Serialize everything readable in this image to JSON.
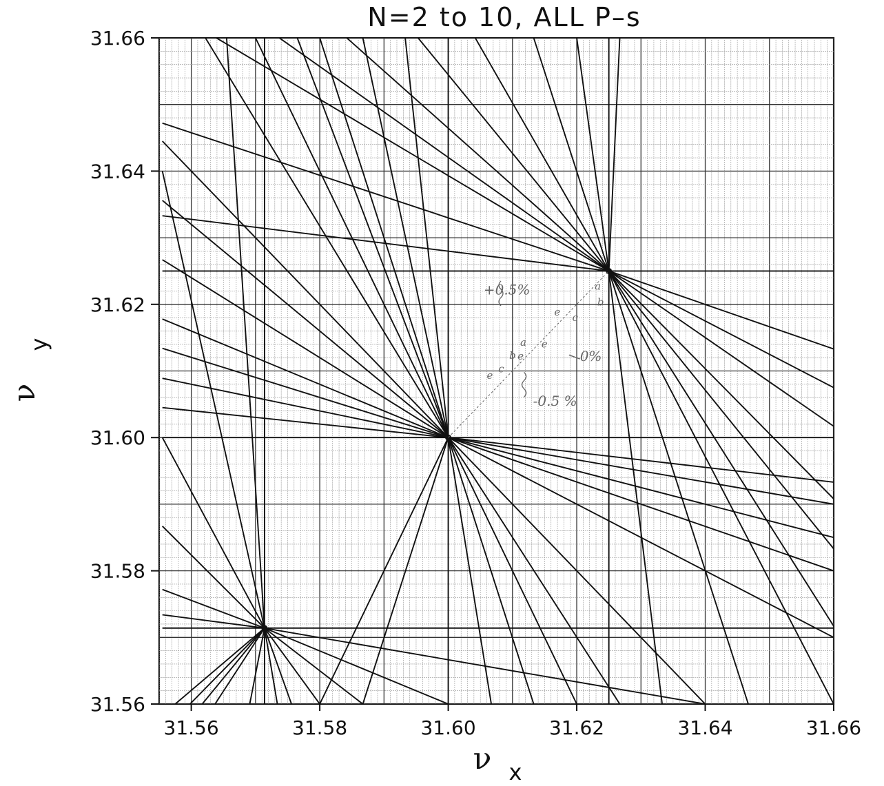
{
  "chart_data": {
    "type": "line",
    "title": "N=2  to  10,  ALL  P–s",
    "xlabel": "ν",
    "xlabel_sub": "x",
    "ylabel": "ν",
    "ylabel_sub": "y",
    "xlim": [
      31.555,
      31.66
    ],
    "ylim": [
      31.56,
      31.66
    ],
    "x_ticks": [
      {
        "value": 31.56,
        "label": "31.56"
      },
      {
        "value": 31.58,
        "label": "31.58"
      },
      {
        "value": 31.6,
        "label": "31.60"
      },
      {
        "value": 31.62,
        "label": "31.62"
      },
      {
        "value": 31.64,
        "label": "31.64"
      },
      {
        "value": 31.66,
        "label": "31.66"
      }
    ],
    "y_ticks": [
      {
        "value": 31.56,
        "label": "31.56"
      },
      {
        "value": 31.58,
        "label": "31.58"
      },
      {
        "value": 31.6,
        "label": "31.60"
      },
      {
        "value": 31.62,
        "label": "31.62"
      },
      {
        "value": 31.64,
        "label": "31.64"
      },
      {
        "value": 31.66,
        "label": "31.66"
      }
    ],
    "grid": true,
    "resonance_nodes": [
      {
        "x": 31.5714,
        "y": 31.5714
      },
      {
        "x": 31.6,
        "y": 31.6
      },
      {
        "x": 31.625,
        "y": 31.625
      }
    ],
    "resonance_lines": [
      [
        31.5714,
        31.5714,
        31.5555,
        31.64
      ],
      [
        31.5714,
        31.5714,
        31.5555,
        31.6
      ],
      [
        31.5714,
        31.5714,
        31.5555,
        31.5867
      ],
      [
        31.5714,
        31.5714,
        31.5555,
        31.5772
      ],
      [
        31.5714,
        31.5714,
        31.5555,
        31.5734
      ],
      [
        31.5714,
        31.5714,
        31.5555,
        31.5714
      ],
      [
        31.5714,
        31.5714,
        31.5575,
        31.56
      ],
      [
        31.5714,
        31.5714,
        31.5598,
        31.56
      ],
      [
        31.5714,
        31.5714,
        31.5617,
        31.56
      ],
      [
        31.5714,
        31.5714,
        31.5637,
        31.56
      ],
      [
        31.5714,
        31.5714,
        31.5691,
        31.56
      ],
      [
        31.5714,
        31.5714,
        31.5714,
        31.56
      ],
      [
        31.5714,
        31.5714,
        31.5734,
        31.56
      ],
      [
        31.5714,
        31.5714,
        31.5756,
        31.56
      ],
      [
        31.5714,
        31.5714,
        31.58,
        31.56
      ],
      [
        31.5714,
        31.5714,
        31.5867,
        31.56
      ],
      [
        31.5714,
        31.5714,
        31.6,
        31.56
      ],
      [
        31.5714,
        31.5714,
        31.64,
        31.56
      ],
      [
        31.5714,
        31.5714,
        31.66,
        31.5714
      ],
      [
        31.5714,
        31.5714,
        31.5714,
        31.66
      ],
      [
        31.5714,
        31.5714,
        31.5655,
        31.66
      ],
      [
        31.6,
        31.6,
        31.5555,
        31.6
      ],
      [
        31.6,
        31.6,
        31.5555,
        31.6045
      ],
      [
        31.6,
        31.6,
        31.5555,
        31.6089
      ],
      [
        31.6,
        31.6,
        31.5555,
        31.6134
      ],
      [
        31.6,
        31.6,
        31.5555,
        31.6178
      ],
      [
        31.6,
        31.6,
        31.5555,
        31.6267
      ],
      [
        31.6,
        31.6,
        31.5555,
        31.6356
      ],
      [
        31.6,
        31.6,
        31.5555,
        31.6445
      ],
      [
        31.6,
        31.6,
        31.5622,
        31.66
      ],
      [
        31.6,
        31.6,
        31.57,
        31.66
      ],
      [
        31.6,
        31.6,
        31.5765,
        31.66
      ],
      [
        31.6,
        31.6,
        31.58,
        31.66
      ],
      [
        31.6,
        31.6,
        31.5867,
        31.66
      ],
      [
        31.6,
        31.6,
        31.5933,
        31.66
      ],
      [
        31.6,
        31.6,
        31.6,
        31.66
      ],
      [
        31.6,
        31.6,
        31.6,
        31.56
      ],
      [
        31.6,
        31.6,
        31.5867,
        31.56
      ],
      [
        31.6,
        31.6,
        31.58,
        31.56
      ],
      [
        31.6,
        31.6,
        31.6067,
        31.56
      ],
      [
        31.6,
        31.6,
        31.6133,
        31.56
      ],
      [
        31.6,
        31.6,
        31.62,
        31.56
      ],
      [
        31.6,
        31.6,
        31.6267,
        31.56
      ],
      [
        31.6,
        31.6,
        31.64,
        31.56
      ],
      [
        31.6,
        31.6,
        31.66,
        31.57
      ],
      [
        31.6,
        31.6,
        31.66,
        31.58
      ],
      [
        31.6,
        31.6,
        31.66,
        31.585
      ],
      [
        31.6,
        31.6,
        31.66,
        31.59
      ],
      [
        31.6,
        31.6,
        31.66,
        31.5933
      ],
      [
        31.6,
        31.6,
        31.66,
        31.6
      ],
      [
        31.625,
        31.625,
        31.5555,
        31.625
      ],
      [
        31.625,
        31.625,
        31.5555,
        31.6333
      ],
      [
        31.625,
        31.625,
        31.5555,
        31.6472
      ],
      [
        31.625,
        31.625,
        31.5639,
        31.66
      ],
      [
        31.625,
        31.625,
        31.5737,
        31.66
      ],
      [
        31.625,
        31.625,
        31.5842,
        31.66
      ],
      [
        31.625,
        31.625,
        31.5953,
        31.66
      ],
      [
        31.625,
        31.625,
        31.6042,
        31.66
      ],
      [
        31.625,
        31.625,
        31.6133,
        31.66
      ],
      [
        31.625,
        31.625,
        31.62,
        31.66
      ],
      [
        31.625,
        31.625,
        31.625,
        31.66
      ],
      [
        31.625,
        31.625,
        31.6267,
        31.66
      ],
      [
        31.625,
        31.625,
        31.625,
        31.56
      ],
      [
        31.625,
        31.625,
        31.6333,
        31.56
      ],
      [
        31.625,
        31.625,
        31.6467,
        31.56
      ],
      [
        31.625,
        31.625,
        31.66,
        31.56
      ],
      [
        31.625,
        31.625,
        31.66,
        31.5717
      ],
      [
        31.625,
        31.625,
        31.66,
        31.5833
      ],
      [
        31.625,
        31.625,
        31.66,
        31.5908
      ],
      [
        31.625,
        31.625,
        31.66,
        31.6017
      ],
      [
        31.625,
        31.625,
        31.66,
        31.6075
      ],
      [
        31.625,
        31.625,
        31.66,
        31.6133
      ],
      [
        31.625,
        31.625,
        31.66,
        31.625
      ]
    ],
    "annotations": [
      {
        "text": "+0.5%",
        "x": 31.6055,
        "y": 31.6215
      },
      {
        "text": "-0.5 %",
        "x": 31.6132,
        "y": 31.6048
      },
      {
        "text": "0%",
        "x": 31.6205,
        "y": 31.6115
      }
    ],
    "annotation_letters": [
      {
        "text": "a",
        "x": 31.6228,
        "y": 31.6222
      },
      {
        "text": "b",
        "x": 31.6232,
        "y": 31.6198
      },
      {
        "text": "c",
        "x": 31.6193,
        "y": 31.6175
      },
      {
        "text": "e",
        "x": 31.6165,
        "y": 31.6183
      },
      {
        "text": "e",
        "x": 31.6145,
        "y": 31.6135
      },
      {
        "text": "a",
        "x": 31.6112,
        "y": 31.6138
      },
      {
        "text": "b",
        "x": 31.6095,
        "y": 31.6118
      },
      {
        "text": "e",
        "x": 31.6108,
        "y": 31.6117
      },
      {
        "text": "e",
        "x": 31.606,
        "y": 31.6088
      },
      {
        "text": "c",
        "x": 31.6078,
        "y": 31.6098
      }
    ]
  }
}
